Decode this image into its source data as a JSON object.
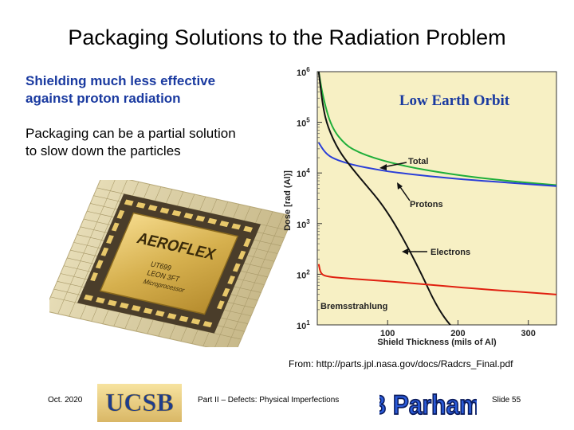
{
  "slide": {
    "title": "Packaging Solutions to the Radiation Problem",
    "bullet1_line1": "Shielding much less effective",
    "bullet1_line2": "against proton radiation",
    "bullet2_line1": "Packaging can be a partial solution",
    "bullet2_line2": "to slow down the particles",
    "chip_brand": "AEROFLEX",
    "chip_line1": "UT699",
    "chip_line2": "LEON 3FT",
    "chip_line3": "Microprocessor",
    "source": "From: http://parts.jpl.nasa.gov/docs/Radcrs_Final.pdf"
  },
  "footer": {
    "date": "Oct. 2020",
    "university_logo": "UCSB",
    "part": "Part II – Defects: Physical Imperfections",
    "author_logo": "B Parhami",
    "slide_number": "Slide 55"
  },
  "colors": {
    "title": "#000000",
    "highlight_text": "#1a3aa0",
    "chart_bg": "#f7f0c4",
    "total": "#1fae3a",
    "protons": "#2a3ed8",
    "electrons": "#111111",
    "bremsstrahlung": "#e02010",
    "chart_title": "#1a3aa0"
  },
  "chart_data": {
    "type": "line",
    "title": "Low Earth Orbit",
    "xlabel": "Shield Thickness (mils of Al)",
    "ylabel": "Dose [rad (Al)]",
    "x_ticks": [
      "100",
      "200",
      "300"
    ],
    "y_ticks": [
      "10^1",
      "10^2",
      "10^3",
      "10^4",
      "10^5",
      "10^6"
    ],
    "xlim": [
      0,
      340
    ],
    "ylim_log10": [
      1,
      6
    ],
    "grid": false,
    "series": [
      {
        "name": "Total",
        "color": "#1fae3a",
        "x": [
          2,
          8,
          20,
          40,
          60,
          80,
          100,
          130,
          170,
          220,
          280,
          340
        ],
        "log_y": [
          6.0,
          5.5,
          4.9,
          4.55,
          4.4,
          4.3,
          4.22,
          4.12,
          4.02,
          3.92,
          3.83,
          3.76
        ]
      },
      {
        "name": "Protons",
        "color": "#2a3ed8",
        "x": [
          2,
          10,
          20,
          40,
          60,
          80,
          100,
          130,
          170,
          220,
          280,
          340
        ],
        "log_y": [
          4.6,
          4.42,
          4.3,
          4.2,
          4.13,
          4.08,
          4.03,
          3.98,
          3.92,
          3.86,
          3.8,
          3.74
        ]
      },
      {
        "name": "Electrons",
        "color": "#111111",
        "x": [
          2,
          8,
          15,
          30,
          50,
          70,
          90,
          110,
          130,
          150,
          165,
          180,
          195
        ],
        "log_y": [
          6.0,
          5.3,
          4.9,
          4.45,
          4.08,
          3.75,
          3.42,
          3.0,
          2.5,
          1.95,
          1.5,
          1.15,
          0.9
        ]
      },
      {
        "name": "Bremsstrahlung",
        "color": "#e02010",
        "x": [
          2,
          5,
          15,
          40,
          80,
          120,
          170,
          220,
          280,
          340
        ],
        "log_y": [
          2.2,
          2.0,
          1.95,
          1.92,
          1.88,
          1.84,
          1.78,
          1.72,
          1.66,
          1.6
        ]
      }
    ],
    "annotations": [
      "Total",
      "Protons",
      "Electrons",
      "Bremsstrahlung"
    ]
  }
}
